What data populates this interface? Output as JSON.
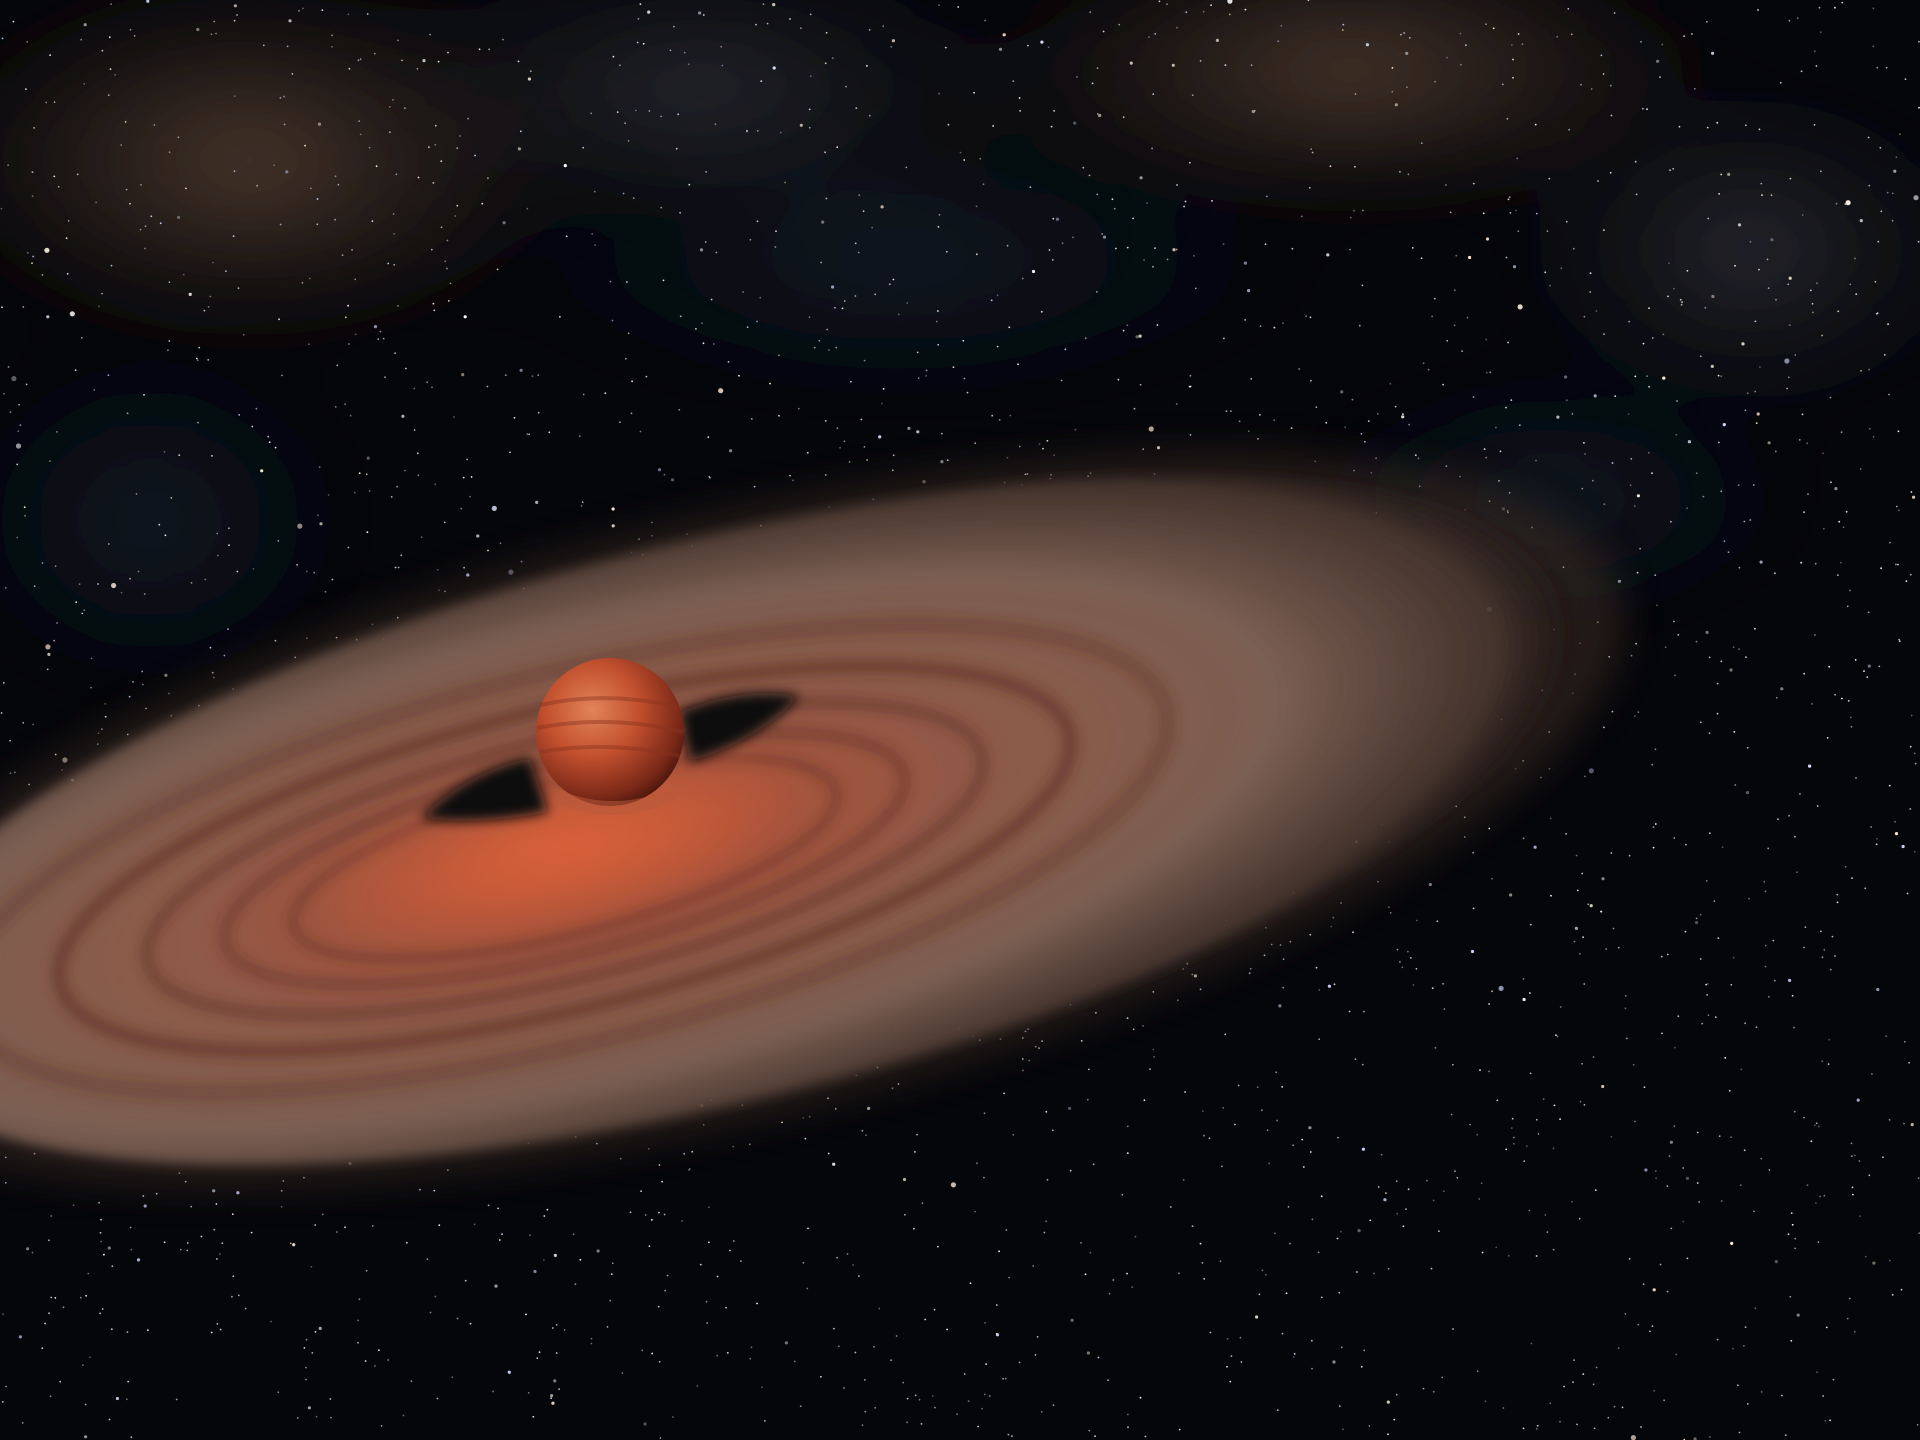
{
  "scene": {
    "subject": "brown-dwarf-with-protoplanetary-disk",
    "elements": [
      "starfield-background",
      "milky-way-dust-band",
      "protoplanetary-disk",
      "disk-gaps",
      "brown-dwarf"
    ],
    "colors": {
      "space": "#05060a",
      "nebula": "#5a4232",
      "disk_outer": "#8a6a58",
      "disk_inner": "#b85a3a",
      "disk_ring": "#7a3424",
      "gap": "#0a0708",
      "dwarf_light": "#d9744a",
      "dwarf_dark": "#6e2214",
      "star": "#ffffff"
    }
  }
}
